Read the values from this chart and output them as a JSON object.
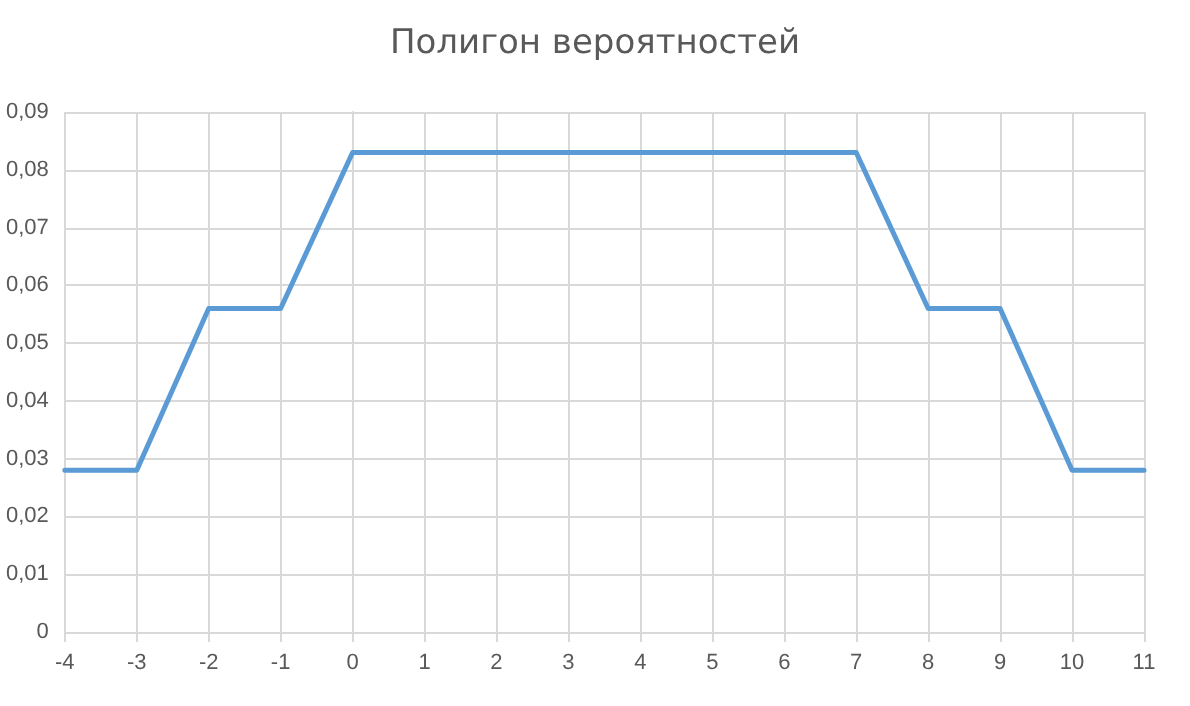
{
  "chart_data": {
    "type": "line",
    "title": "Полигон вероятностей",
    "x": [
      -4,
      -3,
      -2,
      -1,
      0,
      1,
      2,
      3,
      4,
      5,
      6,
      7,
      8,
      9,
      10,
      11
    ],
    "series": [
      {
        "color": "#5b9bd5",
        "values": [
          0.028,
          0.028,
          0.056,
          0.056,
          0.083,
          0.083,
          0.083,
          0.083,
          0.083,
          0.083,
          0.083,
          0.083,
          0.056,
          0.056,
          0.028,
          0.028
        ]
      }
    ],
    "xlim": [
      -4,
      11
    ],
    "xticks": [
      -4,
      -3,
      -2,
      -1,
      0,
      1,
      2,
      3,
      4,
      5,
      6,
      7,
      8,
      9,
      10,
      11
    ],
    "ylim": [
      0,
      0.09
    ],
    "yticks": [
      0,
      {
        "value": 0.01,
        "label": "0,01"
      },
      {
        "value": 0.02,
        "label": "0,02"
      },
      {
        "value": 0.03,
        "label": "0,03"
      },
      {
        "value": 0.04,
        "label": "0,04"
      },
      {
        "value": 0.05,
        "label": "0,05"
      },
      {
        "value": 0.06,
        "label": "0,06"
      },
      {
        "value": 0.07,
        "label": "0,07"
      },
      {
        "value": 0.08,
        "label": "0,08"
      },
      {
        "value": 0.09,
        "label": "0,09"
      }
    ],
    "grid": true,
    "marker": "none",
    "line_style": "solid"
  }
}
